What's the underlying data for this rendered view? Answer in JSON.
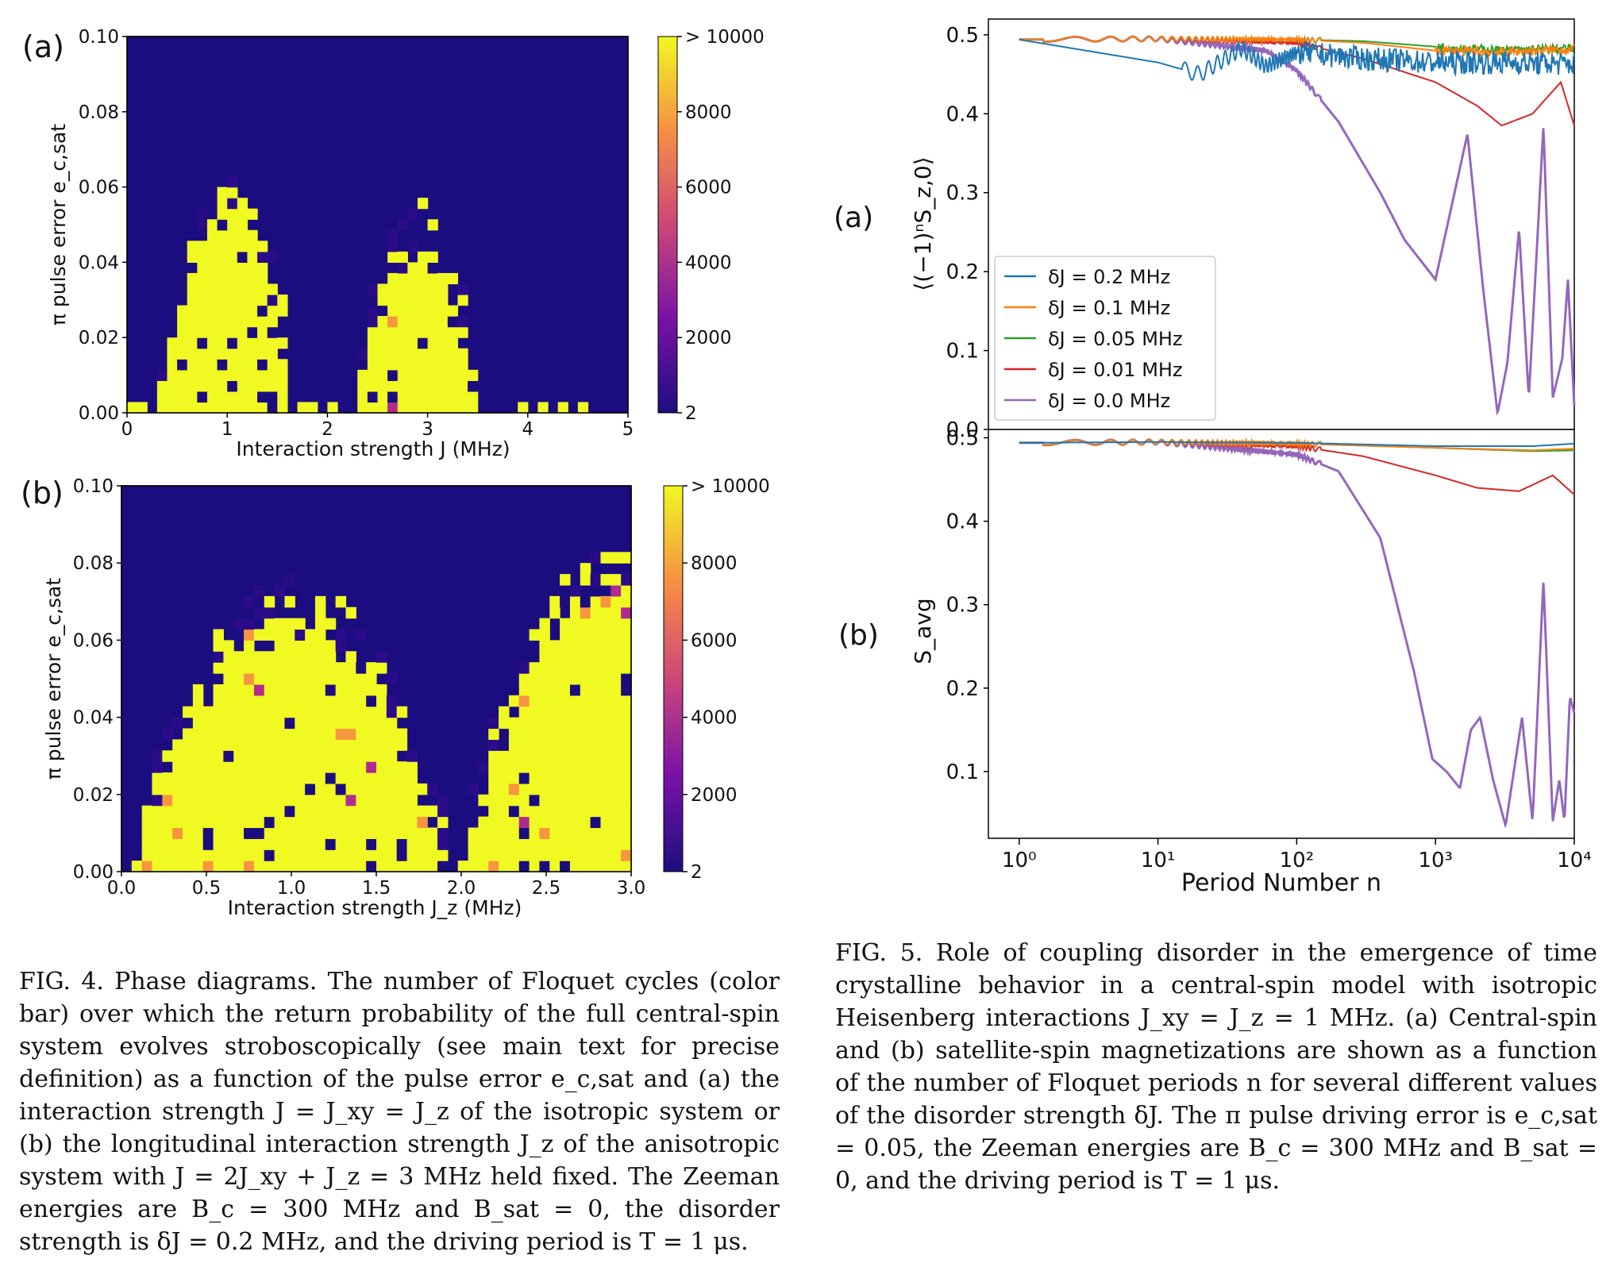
{
  "fig4": {
    "panel_a": {
      "letter": "(a)",
      "xlabel": "Interaction strength J (MHz)",
      "ylabel": "π pulse error e_c,sat",
      "xticks": [
        "0",
        "1",
        "2",
        "3",
        "4",
        "5"
      ],
      "yticks": [
        "0.00",
        "0.02",
        "0.04",
        "0.06",
        "0.08",
        "0.10"
      ],
      "cbar_ticks": [
        "> 10000",
        "8000",
        "6000",
        "4000",
        "2000",
        "2"
      ]
    },
    "panel_b": {
      "letter": "(b)",
      "xlabel": "Interaction strength J_z (MHz)",
      "ylabel": "π pulse error e_c,sat",
      "xticks": [
        "0.0",
        "0.5",
        "1.0",
        "1.5",
        "2.0",
        "2.5",
        "3.0"
      ],
      "yticks": [
        "0.00",
        "0.02",
        "0.04",
        "0.06",
        "0.08",
        "0.10"
      ],
      "cbar_ticks": [
        "> 10000",
        "8000",
        "6000",
        "4000",
        "2000",
        "2"
      ]
    },
    "caption": "FIG. 4. Phase diagrams. The number of Floquet cycles (color bar) over which the return probability of the full central-spin system evolves stroboscopically (see main text for precise definition) as a function of the pulse error e_c,sat and (a) the interaction strength J = J_xy = J_z of the isotropic system or (b) the longitudinal interaction strength J_z of the anisotropic system with J = 2J_xy + J_z = 3 MHz held fixed. The Zeeman energies are B_c = 300 MHz and B_sat = 0, the disorder strength is δJ = 0.2 MHz, and the driving period is T = 1 μs."
  },
  "fig5": {
    "panel_a_letter": "(a)",
    "panel_b_letter": "(b)",
    "xlabel": "Period Number n",
    "ylabel_a": "⟨(−1)ⁿS_z,0⟩",
    "ylabel_b": "S_avg",
    "xticks": [
      "10⁰",
      "10¹",
      "10²",
      "10³",
      "10⁴"
    ],
    "yticks_a": [
      "0.0",
      "0.1",
      "0.2",
      "0.3",
      "0.4",
      "0.5"
    ],
    "yticks_b": [
      "0.1",
      "0.2",
      "0.3",
      "0.4",
      "0.5"
    ],
    "legend": [
      "δJ = 0.2 MHz",
      "δJ = 0.1 MHz",
      "δJ = 0.05 MHz",
      "δJ = 0.01 MHz",
      "δJ = 0.0 MHz"
    ],
    "colors": [
      "#1f77b4",
      "#ff7f0e",
      "#2ca02c",
      "#d62728",
      "#9467bd"
    ],
    "caption": "FIG. 5. Role of coupling disorder in the emergence of time crystalline behavior in a central-spin model with isotropic Heisenberg interactions J_xy = J_z = 1 MHz. (a) Central-spin and (b) satellite-spin magnetizations are shown as a function of the number of Floquet periods n for several different values of the disorder strength δJ. The π pulse driving error is e_c,sat = 0.05, the Zeeman energies are B_c = 300 MHz and B_sat = 0, and the driving period is T = 1 μs."
  },
  "chart_data": [
    {
      "type": "heatmap",
      "title": "",
      "xlabel": "Interaction strength J (MHz)",
      "ylabel": "π pulse error e_c,sat",
      "xlim": [
        0,
        5
      ],
      "ylim": [
        0,
        0.1
      ],
      "colorbar": {
        "min": 2,
        "max": 10000,
        "max_label": "> 10000",
        "colormap": "plasma"
      },
      "regions": [
        {
          "shape": "lobe",
          "center_J": 1.0,
          "half_width_J": 0.65,
          "peak_e": 0.056,
          "value": 10000
        },
        {
          "shape": "lobe",
          "center_J": 2.9,
          "half_width_J": 0.6,
          "peak_e": 0.044,
          "value": 10000
        }
      ]
    },
    {
      "type": "heatmap",
      "title": "",
      "xlabel": "Interaction strength J_z (MHz)",
      "ylabel": "π pulse error e_c,sat",
      "xlim": [
        0,
        3.0
      ],
      "ylim": [
        0,
        0.1
      ],
      "colorbar": {
        "min": 2,
        "max": 10000,
        "max_label": "> 10000",
        "colormap": "plasma"
      },
      "regions": [
        {
          "shape": "lobe",
          "center_J": 1.0,
          "half_width_J": 0.9,
          "peak_e": 0.064,
          "value": 10000
        },
        {
          "shape": "lobe",
          "center_J": 2.85,
          "half_width_J": 0.8,
          "peak_e": 0.075,
          "value": 10000
        }
      ]
    },
    {
      "type": "line",
      "xscale": "log",
      "xlabel": "Period Number n",
      "ylabel": "⟨(−1)ⁿS_z,0⟩",
      "xlim": [
        0.6,
        10000
      ],
      "ylim": [
        0,
        0.52
      ],
      "legend_position": "center-left",
      "series": [
        {
          "name": "δJ = 0.2 MHz",
          "x": [
            1,
            10,
            20,
            40,
            60,
            100,
            300,
            1000,
            3000,
            10000
          ],
          "y": [
            0.494,
            0.465,
            0.45,
            0.483,
            0.46,
            0.478,
            0.47,
            0.465,
            0.465,
            0.463
          ]
        },
        {
          "name": "δJ = 0.1 MHz",
          "x": [
            1,
            10,
            100,
            300,
            1000,
            3000,
            10000
          ],
          "y": [
            0.494,
            0.495,
            0.494,
            0.49,
            0.48,
            0.478,
            0.482
          ]
        },
        {
          "name": "δJ = 0.05 MHz",
          "x": [
            1,
            10,
            100,
            300,
            1000,
            3000,
            10000
          ],
          "y": [
            0.494,
            0.495,
            0.494,
            0.492,
            0.485,
            0.48,
            0.483
          ]
        },
        {
          "name": "δJ = 0.01 MHz",
          "x": [
            1,
            10,
            100,
            300,
            1000,
            2000,
            3000,
            5000,
            8000,
            10000
          ],
          "y": [
            0.494,
            0.495,
            0.49,
            0.47,
            0.44,
            0.41,
            0.385,
            0.4,
            0.44,
            0.385
          ]
        },
        {
          "name": "δJ = 0.0 MHz",
          "x": [
            1,
            10,
            60,
            100,
            200,
            400,
            600,
            1000,
            1700,
            2200,
            2800,
            3300,
            4000,
            4700,
            6000,
            7000,
            8200,
            9000,
            10000
          ],
          "y": [
            0.494,
            0.495,
            0.48,
            0.455,
            0.39,
            0.3,
            0.24,
            0.19,
            0.375,
            0.18,
            0.02,
            0.085,
            0.255,
            0.04,
            0.385,
            0.04,
            0.09,
            0.19,
            0.03
          ]
        }
      ]
    },
    {
      "type": "line",
      "xscale": "log",
      "xlabel": "Period Number n",
      "ylabel": "S_avg",
      "xlim": [
        0.6,
        10000
      ],
      "ylim": [
        0.02,
        0.51
      ],
      "series": [
        {
          "name": "δJ = 0.2 MHz",
          "x": [
            1,
            10,
            100,
            1000,
            5000,
            10000
          ],
          "y": [
            0.494,
            0.495,
            0.494,
            0.49,
            0.49,
            0.493
          ]
        },
        {
          "name": "δJ = 0.1 MHz",
          "x": [
            1,
            10,
            100,
            1000,
            5000,
            10000
          ],
          "y": [
            0.494,
            0.495,
            0.493,
            0.488,
            0.485,
            0.487
          ]
        },
        {
          "name": "δJ = 0.05 MHz",
          "x": [
            1,
            10,
            100,
            1000,
            5000,
            10000
          ],
          "y": [
            0.494,
            0.495,
            0.493,
            0.488,
            0.484,
            0.485
          ]
        },
        {
          "name": "δJ = 0.01 MHz",
          "x": [
            1,
            10,
            100,
            300,
            1000,
            2000,
            4000,
            7000,
            10000
          ],
          "y": [
            0.494,
            0.495,
            0.49,
            0.478,
            0.455,
            0.44,
            0.436,
            0.455,
            0.432
          ]
        },
        {
          "name": "δJ = 0.0 MHz",
          "x": [
            1,
            10,
            100,
            200,
            400,
            700,
            950,
            1200,
            1500,
            1800,
            2100,
            2600,
            3200,
            4200,
            5000,
            6000,
            7000,
            7800,
            8500,
            9300,
            10000
          ],
          "y": [
            0.494,
            0.495,
            0.48,
            0.46,
            0.38,
            0.22,
            0.115,
            0.1,
            0.08,
            0.15,
            0.165,
            0.09,
            0.035,
            0.165,
            0.04,
            0.33,
            0.04,
            0.09,
            0.04,
            0.19,
            0.17
          ]
        }
      ]
    }
  ]
}
